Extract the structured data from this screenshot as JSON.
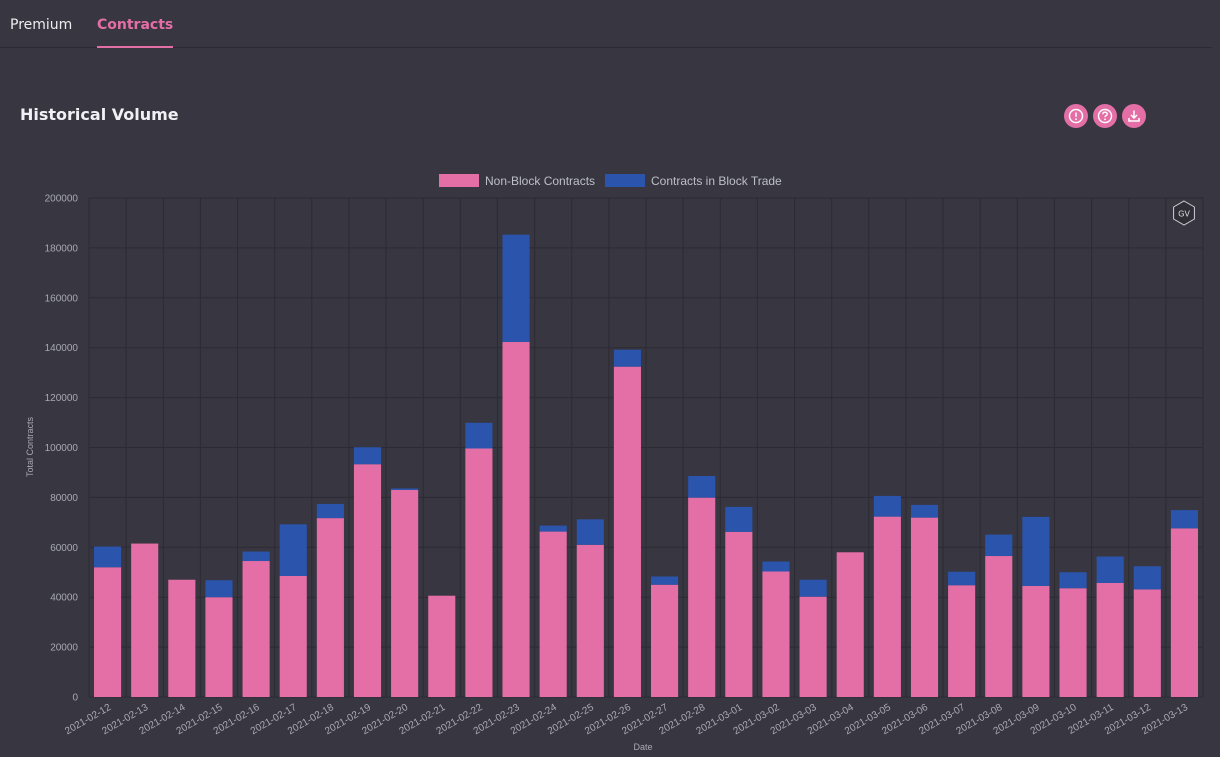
{
  "tabs": [
    {
      "label": "Premium",
      "active": false
    },
    {
      "label": "Contracts",
      "active": true
    }
  ],
  "section": {
    "title": "Historical Volume",
    "actions": [
      {
        "icon": "info-icon"
      },
      {
        "icon": "help-icon"
      },
      {
        "icon": "download-icon"
      }
    ]
  },
  "watermark": "GV",
  "colors": {
    "background": "#373641",
    "accent": "#e46fa6",
    "non_block": "#e46fa6",
    "block": "#2b55ad",
    "grid": "#2c2b34"
  },
  "chart_data": {
    "type": "bar",
    "stacked": true,
    "xlabel": "Date",
    "ylabel": "Total Contracts",
    "ylim": [
      0,
      200000
    ],
    "yticks": [
      0,
      20000,
      40000,
      60000,
      80000,
      100000,
      120000,
      140000,
      160000,
      180000,
      200000
    ],
    "legend_position": "top-center",
    "grid": true,
    "categories": [
      "2021-02-12",
      "2021-02-13",
      "2021-02-14",
      "2021-02-15",
      "2021-02-16",
      "2021-02-17",
      "2021-02-18",
      "2021-02-19",
      "2021-02-20",
      "2021-02-21",
      "2021-02-22",
      "2021-02-23",
      "2021-02-24",
      "2021-02-25",
      "2021-02-26",
      "2021-02-27",
      "2021-02-28",
      "2021-03-01",
      "2021-03-02",
      "2021-03-03",
      "2021-03-04",
      "2021-03-05",
      "2021-03-06",
      "2021-03-07",
      "2021-03-08",
      "2021-03-09",
      "2021-03-10",
      "2021-03-11",
      "2021-03-12",
      "2021-03-13"
    ],
    "series": [
      {
        "name": "Non-Block Contracts",
        "color": "#e46fa6",
        "values": [
          52000,
          61500,
          47000,
          40000,
          54500,
          48500,
          71700,
          93300,
          83000,
          40600,
          99600,
          142300,
          66300,
          61000,
          132400,
          45000,
          79900,
          66200,
          50300,
          40200,
          58000,
          72300,
          71900,
          44800,
          56500,
          44500,
          43600,
          45700,
          43100,
          67600
        ]
      },
      {
        "name": "Contracts in Block Trade",
        "color": "#2b55ad",
        "values": [
          8300,
          0,
          0,
          6800,
          3800,
          20700,
          5700,
          6800,
          600,
          0,
          10300,
          43000,
          2400,
          10200,
          6800,
          3300,
          8700,
          10000,
          4000,
          6800,
          0,
          8300,
          5100,
          5400,
          8600,
          27700,
          6400,
          10600,
          9300,
          7300
        ]
      }
    ]
  }
}
